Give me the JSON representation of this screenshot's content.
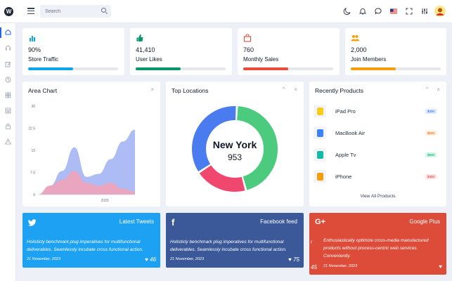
{
  "header": {
    "search_placeholder": "Search"
  },
  "stats": [
    {
      "value": "90%",
      "label": "Store Traffic",
      "color": "#0ea5e9",
      "progress": 0.5
    },
    {
      "value": "41,410",
      "label": "User Likes",
      "color": "#059669",
      "progress": 0.5
    },
    {
      "value": "760",
      "label": "Monthly Sales",
      "color": "#e74c3c",
      "progress": 0.5
    },
    {
      "value": "2,000",
      "label": "Join Members",
      "color": "#f59e0b",
      "progress": 0.5
    }
  ],
  "area_chart": {
    "title": "Area Chart",
    "close": "×"
  },
  "chart_data": [
    {
      "type": "area",
      "title": "Area Chart",
      "y_ticks": [
        "30",
        "22.5",
        "15",
        "7.5",
        "0"
      ],
      "x_tick": "2020",
      "ylim": [
        0,
        30
      ],
      "series": [
        {
          "values": [
            0,
            3,
            8,
            16,
            6,
            7,
            12,
            18,
            22
          ],
          "color": "#9fb0f2"
        },
        {
          "values": [
            0,
            3,
            5,
            8,
            4,
            3,
            4,
            2,
            1
          ],
          "color": "#f0a3b8"
        }
      ]
    },
    {
      "type": "pie",
      "title": "Top Locations",
      "center_label": "New York",
      "center_value": "953",
      "slices": [
        {
          "value": 45,
          "color": "#4ccb7f"
        },
        {
          "value": 20,
          "color": "#f0476e"
        },
        {
          "value": 35,
          "color": "#4a7cf0"
        }
      ]
    }
  ],
  "locations": {
    "title": "Top Locations",
    "collapse": "⌃",
    "close": "×",
    "center_label": "New York",
    "center_value": "953"
  },
  "products": {
    "title": "Recently Products",
    "collapse": "⌃",
    "close": "×",
    "view_all": "View All Products",
    "items": [
      {
        "name": "iPad Pro",
        "price": "$300",
        "badge_color": "#dbeafe",
        "text_color": "#2563eb",
        "icon": "ipad-icon",
        "icon_color": "#facc15"
      },
      {
        "name": "MacBook Air",
        "price": "$500",
        "badge_color": "#ffedd5",
        "text_color": "#ea580c",
        "icon": "macbook-icon",
        "icon_color": "#3b82f6"
      },
      {
        "name": "Apple Tv",
        "price": "$500",
        "badge_color": "#d1fae5",
        "text_color": "#059669",
        "icon": "apple-tv-icon",
        "icon_color": "#14b8a6"
      },
      {
        "name": "iPhone",
        "price": "$450",
        "badge_color": "#fee2e2",
        "text_color": "#dc2626",
        "icon": "iphone-icon",
        "icon_color": "#f59e0b"
      }
    ]
  },
  "social": [
    {
      "title": "Latest Tweets",
      "icon": "twitter-icon",
      "glyph": "🐦",
      "color": "#1da1f2",
      "text": "Holisticly benchmark plug imperatives for multifunctional deliverables. Seamlessly incubate cross functional action.",
      "date": "21 November, 2023",
      "likes": "46"
    },
    {
      "title": "Facebook feed",
      "icon": "facebook-icon",
      "glyph": "f",
      "color": "#3b5998",
      "text": "Holisticly benchmark plug imperatives for multifunctional deliverables. Seamlessly incubate cross functional action.",
      "date": "21 November, 2023",
      "likes": "75"
    },
    {
      "title": "Google Plus",
      "icon": "google-plus-icon",
      "glyph": "G+",
      "color": "#dd4b39",
      "text": "Enthusiastically optimize cross-media manufactured products without process-centric web services. Conveniently.",
      "date": "21 November, 2023",
      "likes": "45",
      "left_glyph": "f"
    }
  ]
}
